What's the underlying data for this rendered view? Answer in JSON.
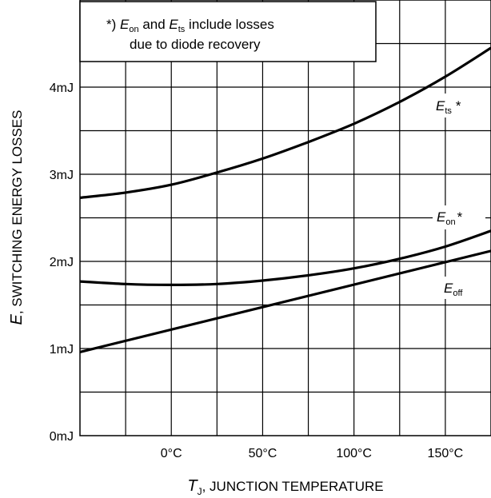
{
  "chart_data": {
    "type": "line",
    "xlabel": {
      "symbol": "T",
      "subscript": "J",
      "text": ", JUNCTION TEMPERATURE"
    },
    "ylabel": {
      "symbol": "E",
      "text": ", SWITCHING ENERGY LOSSES"
    },
    "x_ticks": [
      {
        "value": 0,
        "label": "0°C"
      },
      {
        "value": 50,
        "label": "50°C"
      },
      {
        "value": 100,
        "label": "100°C"
      },
      {
        "value": 150,
        "label": "150°C"
      }
    ],
    "y_ticks": [
      {
        "value": 0,
        "label": "0mJ"
      },
      {
        "value": 1,
        "label": "1mJ"
      },
      {
        "value": 2,
        "label": "2mJ"
      },
      {
        "value": 3,
        "label": "3mJ"
      },
      {
        "value": 4,
        "label": "4mJ"
      }
    ],
    "xlim": [
      -50,
      175
    ],
    "ylim": [
      0,
      5
    ],
    "grid": true,
    "note": {
      "line1": {
        "prefix": "*) ",
        "sym1": "E",
        "sub1": "on",
        "mid": " and ",
        "sym2": "E",
        "sub2": "ts",
        "suffix": " include losses"
      },
      "line2": "due to diode recovery"
    },
    "series": [
      {
        "label": {
          "symbol": "E",
          "subscript": "ts",
          "suffix": "*"
        },
        "x": [
          -50,
          -25,
          0,
          25,
          50,
          75,
          100,
          125,
          150,
          175
        ],
        "y": [
          2.73,
          2.79,
          2.88,
          3.02,
          3.18,
          3.37,
          3.58,
          3.83,
          4.12,
          4.45
        ]
      },
      {
        "label": {
          "symbol": "E",
          "subscript": "on",
          "suffix": "*"
        },
        "x": [
          -50,
          -25,
          0,
          25,
          50,
          75,
          100,
          125,
          150,
          175
        ],
        "y": [
          1.77,
          1.74,
          1.73,
          1.74,
          1.78,
          1.84,
          1.92,
          2.03,
          2.17,
          2.35
        ]
      },
      {
        "label": {
          "symbol": "E",
          "subscript": "off",
          "suffix": ""
        },
        "x": [
          -50,
          175
        ],
        "y": [
          0.96,
          2.12
        ]
      }
    ]
  }
}
